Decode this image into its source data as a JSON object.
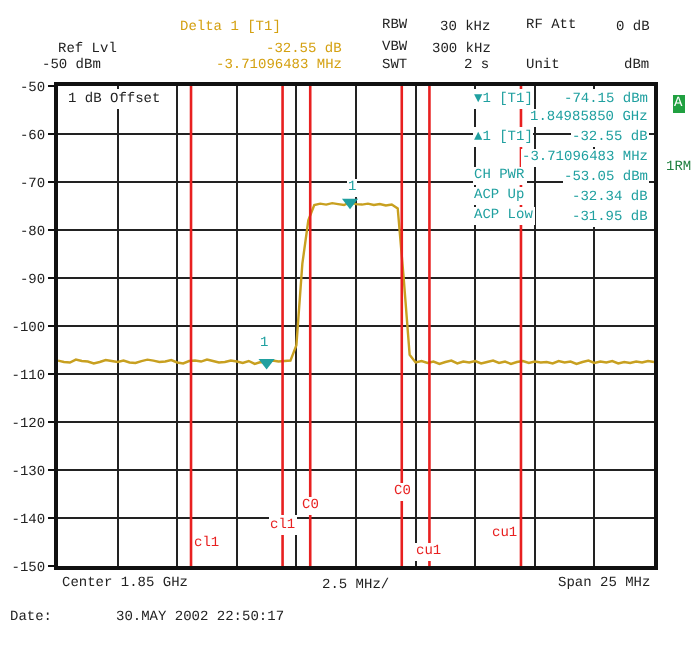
{
  "chart_data": {
    "type": "line",
    "categories": [
      null,
      null,
      null,
      null,
      null,
      null,
      null,
      null,
      null,
      null,
      null,
      null,
      null,
      null,
      null,
      null,
      null,
      null,
      null,
      null,
      null,
      null,
      null,
      null,
      null,
      null,
      null,
      null,
      null,
      null,
      null,
      null,
      null,
      null,
      null,
      null,
      null,
      null,
      null,
      null,
      null,
      null,
      null,
      null,
      null,
      null,
      null,
      null,
      null,
      null,
      null,
      null,
      null,
      null,
      null,
      null,
      null,
      null,
      null,
      null,
      null,
      null,
      null,
      null,
      null,
      null,
      null,
      null,
      null,
      null,
      null,
      null,
      null,
      null,
      null,
      null,
      null,
      null,
      null,
      null,
      null,
      null,
      null,
      null,
      null,
      null,
      null,
      null,
      null,
      null,
      null,
      null,
      null,
      null,
      null,
      null,
      null,
      null,
      null,
      null,
      null
    ],
    "ylim": [
      -150,
      -50
    ],
    "yticks": [
      -50,
      -60,
      -70,
      -80,
      -90,
      -100,
      -110,
      -120,
      -130,
      -140,
      -150
    ],
    "tick_labels": "y",
    "grid": true,
    "series": [
      {
        "color": "#c8a020",
        "line_style": "solid",
        "marker": "none",
        "values": [
          -107.2,
          -107.5,
          -107.6,
          -107.0,
          -107.3,
          -107.4,
          -107.8,
          -107.5,
          -107.1,
          -107.3,
          -107.5,
          -107.2,
          -107.6,
          -107.7,
          -107.3,
          -107.0,
          -107.2,
          -107.5,
          -107.4,
          -107.1,
          -107.6,
          -107.8,
          -107.3,
          -107.2,
          -107.4,
          -107.0,
          -107.3,
          -107.6,
          -107.5,
          -107.2,
          -107.4,
          -107.7,
          -107.3,
          -107.9,
          -107.5,
          -107.6,
          -107.2,
          -107.4,
          -107.3,
          -107.2,
          -104,
          -87,
          -78,
          -74.8,
          -74.5,
          -74.7,
          -74.4,
          -74.6,
          -74.8,
          -74.2,
          -74.6,
          -74.7,
          -74.5,
          -74.8,
          -74.6,
          -74.9,
          -74.7,
          -75.5,
          -90,
          -106,
          -107.6,
          -107.3,
          -107.7,
          -107.4,
          -107.9,
          -107.5,
          -107.2,
          -107.8,
          -107.4,
          -107.6,
          -107.3,
          -107.8,
          -107.5,
          -107.2,
          -107.7,
          -107.4,
          -107.9,
          -107.5,
          -107.3,
          -107.7,
          -107.4,
          -107.6,
          -107.5,
          -107.8,
          -107.3,
          -107.6,
          -107.4,
          -107.9,
          -107.5,
          -107.2,
          -107.7,
          -107.4,
          -107.6,
          -107.3,
          -107.8,
          -107.5,
          -107.7,
          -107.4,
          -107.6,
          -107.3,
          -107.5
        ]
      },
      {
        "type": "scatter",
        "color": "#20a0a0",
        "marker": "triangle",
        "values": [
          null,
          null,
          null,
          null,
          null,
          null,
          null,
          null,
          null,
          null,
          null,
          null,
          null,
          null,
          null,
          null,
          null,
          null,
          null,
          null,
          null,
          null,
          null,
          null,
          null,
          null,
          null,
          null,
          null,
          null,
          null,
          null,
          null,
          null,
          null,
          -107.6,
          null,
          null,
          null,
          null,
          null,
          null,
          null,
          null,
          null,
          null,
          null,
          null,
          null,
          -74.2,
          null,
          null,
          null,
          null,
          null,
          null,
          null,
          null,
          null,
          null,
          null,
          null,
          null,
          null,
          null,
          null,
          null,
          null,
          null,
          null,
          null,
          null,
          null,
          null,
          null,
          null,
          null,
          null,
          null,
          null,
          null,
          null,
          null,
          null,
          null,
          null,
          null,
          null,
          null,
          null,
          null,
          null,
          null,
          null,
          null,
          null,
          null,
          null,
          null,
          null,
          null
        ]
      }
    ],
    "ref_lines": [
      {
        "label": "cl1",
        "color": "#e82020"
      },
      {
        "label": "cl1",
        "color": "#e82020"
      },
      {
        "label": "C0",
        "color": "#e82020"
      },
      {
        "label": "C0",
        "color": "#e82020"
      },
      {
        "label": "cu1",
        "color": "#e82020"
      },
      {
        "label": "cu1",
        "color": "#e82020"
      }
    ],
    "annotations": [
      "Delta 1 [T1]",
      "-32.55 dB",
      "-3.71096483 MHz",
      "RBW",
      "30 kHz",
      "RF Att",
      "0 dB",
      "VBW",
      "300 kHz",
      "SWT",
      "2 s",
      "Unit",
      "dBm",
      "Ref Lvl",
      "-50 dBm",
      "1 dB Offset",
      "▼1 [T1]",
      "-74.15 dBm",
      "1.84985850 GHz",
      "▲1 [T1]",
      "-32.55 dB",
      "-3.71096483 MHz",
      "CH PWR",
      "-53.05 dBm",
      "ACP Up",
      "-32.34 dB",
      "ACP Low",
      "-31.95 dB",
      "A",
      "1RM",
      "Center 1.85 GHz",
      "2.5 MHz/",
      "Span 25 MHz",
      "Date:",
      "30.MAY 2002 22:50:17",
      "1",
      "1"
    ]
  }
}
